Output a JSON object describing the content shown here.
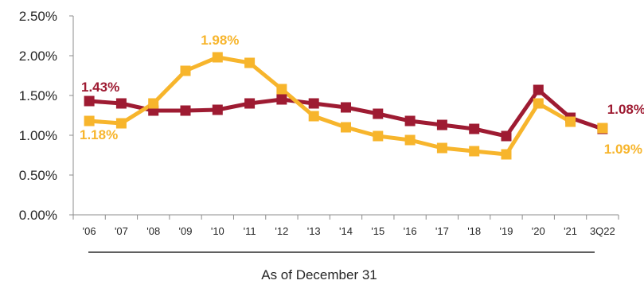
{
  "chart_data": {
    "type": "line",
    "xlabel": "As of  December 31",
    "ylabel": "",
    "categories": [
      "'06",
      "'07",
      "'08",
      "'09",
      "'10",
      "'11",
      "'12",
      "'13",
      "'14",
      "'15",
      "'16",
      "'17",
      "'18",
      "'19",
      "'20",
      "'21",
      "3Q22"
    ],
    "ylim": [
      0,
      0.025
    ],
    "yticks": [
      "0.00%",
      "0.50%",
      "1.00%",
      "1.50%",
      "2.00%",
      "2.50%"
    ],
    "grid": false,
    "series": [
      {
        "color": "#9e1b32",
        "values": [
          0.0143,
          0.014,
          0.0131,
          0.0131,
          0.0132,
          0.014,
          0.0145,
          0.014,
          0.0135,
          0.0127,
          0.0118,
          0.0113,
          0.0108,
          0.0099,
          0.0157,
          0.0122,
          0.0108
        ],
        "standalone_last": false
      },
      {
        "color": "#f7b52c",
        "values": [
          0.0118,
          0.0115,
          0.014,
          0.0181,
          0.0198,
          0.0191,
          0.0158,
          0.0124,
          0.011,
          0.0099,
          0.0094,
          0.0084,
          0.008,
          0.0076,
          0.014,
          0.0117,
          0.0109
        ],
        "standalone_last": true
      }
    ],
    "data_labels": [
      {
        "series": 0,
        "index": 0,
        "text": "1.43%"
      },
      {
        "series": 1,
        "index": 0,
        "text": "1.18%"
      },
      {
        "series": 1,
        "index": 4,
        "text": "1.98%"
      },
      {
        "series": 0,
        "index": 16,
        "text": "1.08%"
      },
      {
        "series": 1,
        "index": 16,
        "text": "1.09%"
      }
    ]
  }
}
